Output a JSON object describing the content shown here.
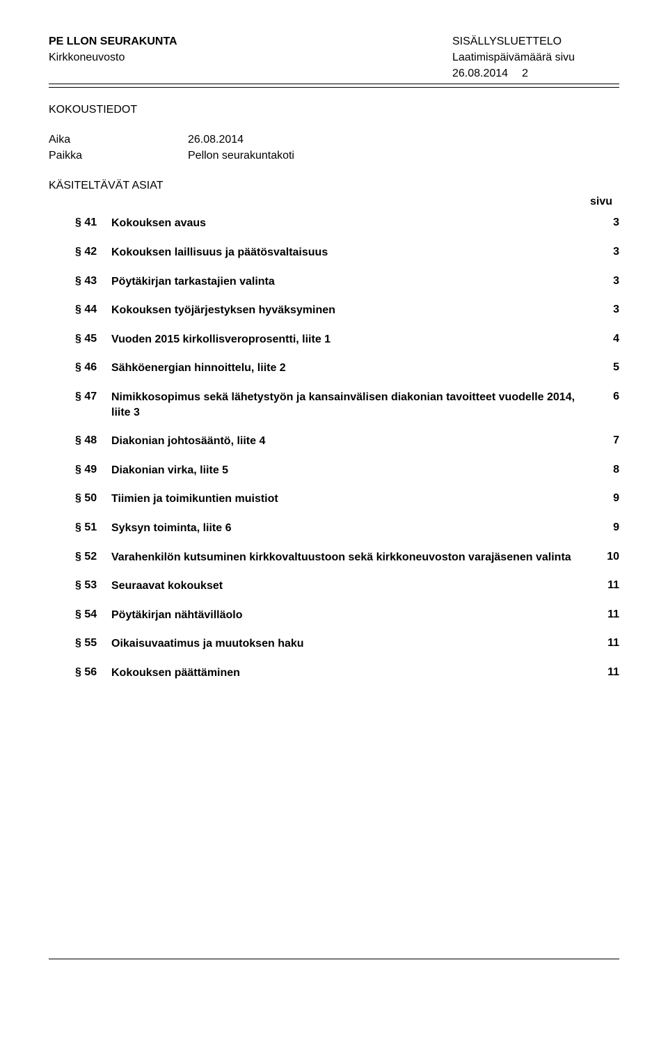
{
  "header": {
    "org_left_bold": "PE LLON SEURAKUNTA",
    "org_right": "SISÄLLYSLUETTELO",
    "body_left": "Kirkkoneuvosto",
    "body_right": "Laatimispäivämäärä sivu",
    "date": "26.08.2014",
    "page": "2"
  },
  "meeting": {
    "section_title": "KOKOUSTIEDOT",
    "time_label": "Aika",
    "time_value": "26.08.2014",
    "place_label": "Paikka",
    "place_value": "Pellon seurakuntakoti"
  },
  "agenda": {
    "title": "KÄSITELTÄVÄT ASIAT",
    "page_col_label": "sivu",
    "items": [
      {
        "num": "§ 41",
        "text": "Kokouksen avaus",
        "page": "3"
      },
      {
        "num": "§ 42",
        "text": "Kokouksen laillisuus ja päätösvaltaisuus",
        "page": "3"
      },
      {
        "num": "§ 43",
        "text": "Pöytäkirjan tarkastajien valinta",
        "page": "3"
      },
      {
        "num": "§ 44",
        "text": "Kokouksen työjärjestyksen hyväksyminen",
        "page": "3"
      },
      {
        "num": "§ 45",
        "text": "Vuoden 2015 kirkollisveroprosentti, liite 1",
        "page": "4"
      },
      {
        "num": "§ 46",
        "text": "Sähköenergian hinnoittelu, liite 2",
        "page": "5"
      },
      {
        "num": "§ 47",
        "text": "Nimikkosopimus sekä lähetystyön ja kansainvälisen diakonian tavoitteet vuodelle 2014, liite 3",
        "page": "6"
      },
      {
        "num": "§ 48",
        "text": "Diakonian johtosääntö, liite 4",
        "page": "7"
      },
      {
        "num": "§ 49",
        "text": "Diakonian virka, liite 5",
        "page": "8"
      },
      {
        "num": "§ 50",
        "text": "Tiimien ja toimikuntien muistiot",
        "page": "9"
      },
      {
        "num": "§ 51",
        "text": "Syksyn toiminta, liite 6",
        "page": "9"
      },
      {
        "num": "§ 52",
        "text": "Varahenkilön kutsuminen kirkkovaltuustoon sekä kirkkoneuvoston varajäsenen valinta",
        "page": "10"
      },
      {
        "num": "§ 53",
        "text": "Seuraavat kokoukset",
        "page": "11"
      },
      {
        "num": "§ 54",
        "text": "Pöytäkirjan nähtävilläolo",
        "page": "11"
      },
      {
        "num": "§ 55",
        "text": "Oikaisuvaatimus ja muutoksen haku",
        "page": "11"
      },
      {
        "num": "§ 56",
        "text": "Kokouksen päättäminen",
        "page": "11"
      }
    ]
  }
}
